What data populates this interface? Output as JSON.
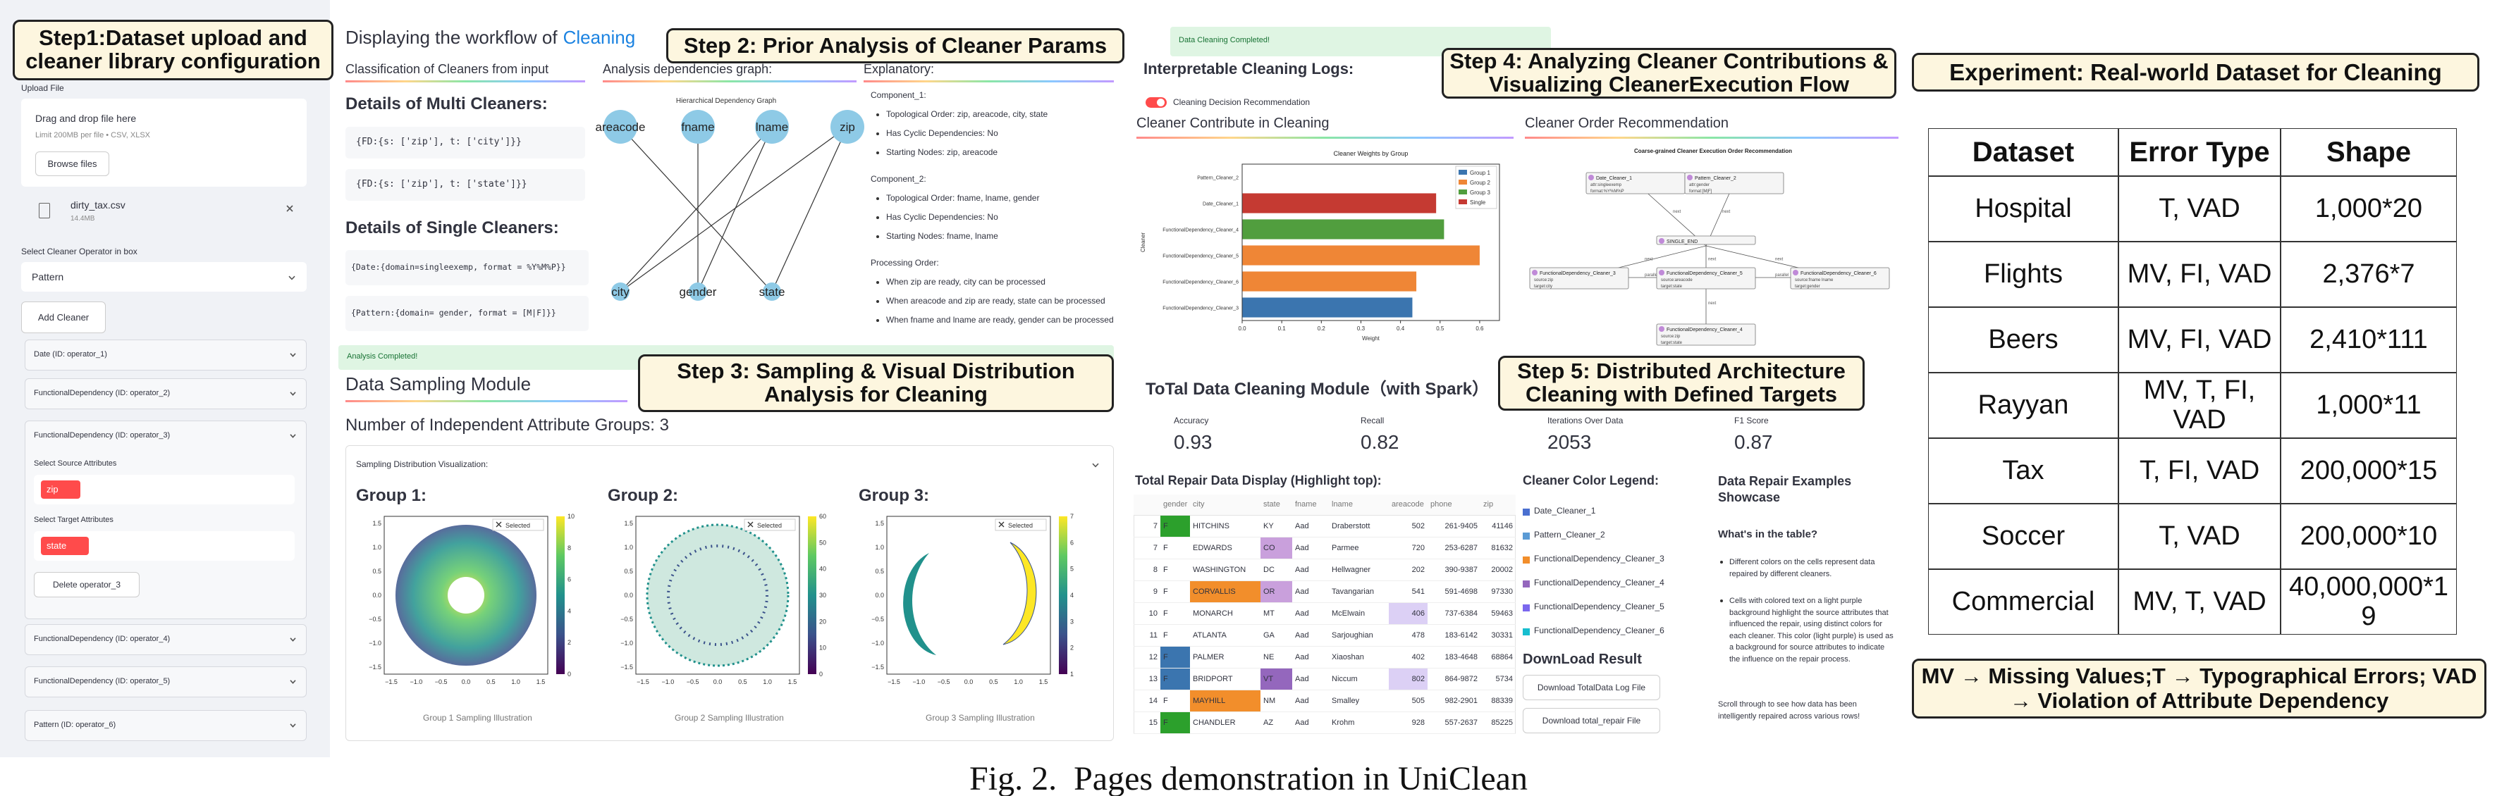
{
  "caption": "Fig. 2.  Pages demonstration in UniClean",
  "steps": [
    "Step1:Dataset upload and cleaner library configuration",
    "Step 2: Prior Analysis of Cleaner Params",
    "Step 3: Sampling & Visual Distribution Analysis for Cleaning",
    "Step 4: Analyzing Cleaner Contributions & Visualizing CleanerExecution Flow",
    "Step 5: Distributed Architecture Cleaning with Defined Targets"
  ],
  "sidebar": {
    "upload_label": "Upload File",
    "drop": "Drag and drop file here",
    "limit": "Limit 200MB per file • CSV, XLSX",
    "browse": "Browse files",
    "file_name": "dirty_tax.csv",
    "file_size": "14.4MB",
    "select_label": "Select Cleaner Operator in box",
    "select_value": "Pattern",
    "add": "Add Cleaner",
    "operators": [
      "Date (ID: operator_1)",
      "FunctionalDependency (ID: operator_2)",
      "FunctionalDependency (ID: operator_3)",
      "FunctionalDependency (ID: operator_4)",
      "FunctionalDependency (ID: operator_5)",
      "Pattern (ID: operator_6)"
    ],
    "source_label": "Select Source Attributes",
    "source_tag": "zip",
    "target_label": "Select Target Attributes",
    "target_tag": "state",
    "delete": "Delete operator_3"
  },
  "analysis": {
    "workflow_prefix": "Displaying the workflow of",
    "workflow_name": "Cleaning",
    "classification": "Classification of Cleaners from input",
    "dependency_graph": "Analysis dependencies graph:",
    "explanatory": "Explanatory:",
    "multi_title": "Details of Multi Cleaners:",
    "multi": [
      "{FD:{s: ['zip'], t: ['city']}}",
      "{FD:{s: ['zip'], t: ['state']}}"
    ],
    "single_title": "Details of Single Cleaners:",
    "single": [
      "{Date:{domain=singleexemp, format = %Y%M%P}}",
      "{Pattern:{domain= gender, format = [M|F]}}"
    ],
    "graph": {
      "title": "Hierarchical Dependency Graph",
      "nodes": [
        "areacode",
        "fname",
        "lname",
        "zip",
        "city",
        "gender",
        "state"
      ]
    },
    "explanations": [
      {
        "heading": "Component_1:",
        "items": [
          "Topological Order: zip, areacode, city, state",
          "Has Cyclic Dependencies: No",
          "Starting Nodes: zip, areacode"
        ]
      },
      {
        "heading": "Component_2:",
        "items": [
          "Topological Order: fname, lname, gender",
          "Has Cyclic Dependencies: No",
          "Starting Nodes: fname, lname"
        ]
      },
      {
        "heading": "Processing Order:",
        "items": [
          "When zip are ready, city can be processed",
          "When areacode and zip are ready, state can be processed",
          "When fname and lname are ready, gender can be processed"
        ]
      }
    ],
    "completed": "Analysis Completed!"
  },
  "sampling": {
    "title": "Data Sampling Module",
    "groups_count": "Number of Independent Attribute Groups: 3",
    "viz_title": "Sampling Distribution Visualization:",
    "selected": "Selected",
    "axis_tick_labels": [
      "−1.5",
      "−1.0",
      "−0.5",
      "0.0",
      "0.5",
      "1.0",
      "1.5"
    ],
    "groups": [
      {
        "title": "Group 1:",
        "caption": "Group 1 Sampling Illustration",
        "colorbar_labels": [
          "0",
          "2",
          "4",
          "6",
          "8",
          "10"
        ]
      },
      {
        "title": "Group 2:",
        "caption": "Group 2 Sampling Illustration",
        "colorbar_labels": [
          "0",
          "10",
          "20",
          "30",
          "40",
          "50",
          "60"
        ]
      },
      {
        "title": "Group 3:",
        "caption": "Group 3 Sampling Illustration",
        "colorbar_labels": [
          "1",
          "2",
          "3",
          "4",
          "5",
          "6",
          "7"
        ]
      }
    ]
  },
  "results": {
    "completed": "Data Cleaning Completed!",
    "logs_title": "Interpretable Cleaning Logs:",
    "toggle": "Cleaning Decision Recommendation",
    "contribute_title": "Cleaner Contribute in Cleaning",
    "order_title": "Cleaner Order Recommendation",
    "flow": {
      "title": "Coarse-grained Cleaner Execution Order Recommendation",
      "parallel": "parallel",
      "next": "next",
      "nodes": [
        {
          "name": "Date_Cleaner_1",
          "lines": [
            "attr:singleexemp",
            "format:%Y%M%P"
          ]
        },
        {
          "name": "Pattern_Cleaner_2",
          "lines": [
            "attr:gender",
            "format:[M|F]"
          ]
        },
        {
          "name": "SINGLE_END",
          "lines": []
        },
        {
          "name": "FunctionalDependency_Cleaner_3",
          "lines": [
            "source:zip",
            "target:city"
          ]
        },
        {
          "name": "FunctionalDependency_Cleaner_5",
          "lines": [
            "source:areacode",
            "target:state"
          ]
        },
        {
          "name": "FunctionalDependency_Cleaner_6",
          "lines": [
            "source:fname lname",
            "target:gender"
          ]
        },
        {
          "name": "FunctionalDependency_Cleaner_4",
          "lines": [
            "source:zip",
            "target:state"
          ]
        }
      ]
    },
    "spark_title": "ToTal Data Cleaning Module（with Spark）",
    "metrics": [
      {
        "label": "Accuracy",
        "value": 0.93
      },
      {
        "label": "Recall",
        "value": 0.82
      },
      {
        "label": "Iterations Over Data",
        "value": 2053
      },
      {
        "label": "F1 Score",
        "value": 0.87
      }
    ],
    "repair_title": "Total Repair Data Display (Highlight top):",
    "repair_table": {
      "header": [
        "",
        "gender",
        "city",
        "state",
        "fname",
        "lname",
        "areacode",
        "phone",
        "zip"
      ],
      "rows": [
        [
          "7",
          "F",
          "HITCHINS",
          "KY",
          "Aad",
          "Draberstott",
          "502",
          "261-9405",
          "41146"
        ],
        [
          "7",
          "F",
          "EDWARDS",
          "CO",
          "Aad",
          "Parmee",
          "720",
          "253-6287",
          "81632"
        ],
        [
          "8",
          "F",
          "WASHINGTON",
          "DC",
          "Aad",
          "Hellwagner",
          "202",
          "390-9387",
          "20002"
        ],
        [
          "9",
          "F",
          "CORVALLIS",
          "OR",
          "Aad",
          "Tavangarian",
          "541",
          "591-4698",
          "97330"
        ],
        [
          "10",
          "F",
          "MONARCH",
          "MT",
          "Aad",
          "McElwain",
          "406",
          "737-6384",
          "59463"
        ],
        [
          "11",
          "F",
          "ATLANTA",
          "GA",
          "Aad",
          "Sarjoughian",
          "478",
          "183-6142",
          "30331"
        ],
        [
          "12",
          "F",
          "PALMER",
          "NE",
          "Aad",
          "Xiaoshan",
          "402",
          "183-4648",
          "68864"
        ],
        [
          "13",
          "F",
          "BRIDPORT",
          "VT",
          "Aad",
          "Niccum",
          "802",
          "864-9872",
          "5734"
        ],
        [
          "14",
          "F",
          "MAYHILL",
          "NM",
          "Aad",
          "Smalley",
          "505",
          "982-2901",
          "88339"
        ],
        [
          "15",
          "F",
          "CHANDLER",
          "AZ",
          "Aad",
          "Krohm",
          "928",
          "557-2637",
          "85225"
        ]
      ],
      "highlights": [
        {
          "row": 0,
          "col": 1,
          "color": "#2ca02c"
        },
        {
          "row": 1,
          "col": 3,
          "color": "#c9a0dc"
        },
        {
          "row": 3,
          "col": 2,
          "color": "#f28e2b"
        },
        {
          "row": 3,
          "col": 3,
          "color": "#c9a0dc"
        },
        {
          "row": 4,
          "col": 6,
          "color": "#dcd0f5"
        },
        {
          "row": 6,
          "col": 1,
          "color": "#3b75af"
        },
        {
          "row": 7,
          "col": 1,
          "color": "#3b75af"
        },
        {
          "row": 7,
          "col": 3,
          "color": "#9467bd"
        },
        {
          "row": 7,
          "col": 6,
          "color": "#dcd0f5"
        },
        {
          "row": 8,
          "col": 2,
          "color": "#f28e2b"
        },
        {
          "row": 9,
          "col": 1,
          "color": "#2ca02c"
        }
      ]
    },
    "legend_title": "Cleaner Color Legend:",
    "legend": [
      {
        "name": "Date_Cleaner_1",
        "color": "#4a6fd0"
      },
      {
        "name": "Pattern_Cleaner_2",
        "color": "#5b9bd5"
      },
      {
        "name": "FunctionalDependency_Cleaner_3",
        "color": "#f28e2b"
      },
      {
        "name": "FunctionalDependency_Cleaner_4",
        "color": "#9467bd"
      },
      {
        "name": "FunctionalDependency_Cleaner_5",
        "color": "#7b68ee"
      },
      {
        "name": "FunctionalDependency_Cleaner_6",
        "color": "#17becf"
      }
    ],
    "download_title": "DownLoad Result",
    "downloads": [
      "Download TotalData Log File",
      "Download total_repair File"
    ],
    "examples_title": "Data Repair Examples Showcase",
    "examples_question": "What's in the table?",
    "examples_bullets": [
      "Different colors on the cells represent data repaired by different cleaners.",
      "Cells with colored text on a light purple background highlight the source attributes that influenced the repair, using distinct colors for each cleaner. This color (light purple) is used as a background for source attributes to indicate the influence on the repair process."
    ],
    "examples_footer": "Scroll through to see how data has been intelligently repaired across various rows!"
  },
  "chart_data": {
    "type": "bar",
    "orientation": "horizontal",
    "title": "Cleaner Weights by Group",
    "xlabel": "Weight",
    "ylabel": "Cleaner",
    "categories": [
      "Pattern_Cleaner_2",
      "Date_Cleaner_1",
      "FunctionalDependency_Cleaner_4",
      "FunctionalDependency_Cleaner_5",
      "FunctionalDependency_Cleaner_6",
      "FunctionalDependency_Cleaner_3"
    ],
    "series": [
      {
        "name": "Group 1",
        "color": "#3b75af",
        "values": [
          null,
          null,
          null,
          null,
          null,
          0.43
        ]
      },
      {
        "name": "Group 2",
        "color": "#ef8636",
        "values": [
          null,
          null,
          null,
          0.6,
          0.44,
          null
        ]
      },
      {
        "name": "Group 3",
        "color": "#519e3e",
        "values": [
          null,
          null,
          0.51,
          null,
          null,
          null
        ]
      },
      {
        "name": "Single",
        "color": "#c53a32",
        "values": [
          0,
          0.49,
          null,
          null,
          null,
          null
        ]
      }
    ],
    "xlim": [
      0,
      0.65
    ],
    "xticks": [
      {
        "value": 0,
        "label": "0.0"
      },
      0.1,
      0.2,
      0.3,
      0.4,
      0.5,
      0.6
    ],
    "legend": "upper right"
  },
  "experiment": {
    "title": "Experiment: Real-world Dataset for Cleaning",
    "header": [
      "Dataset",
      "Error Type",
      "Shape"
    ],
    "rows": [
      [
        "Hospital",
        "T, VAD",
        "1,000*20"
      ],
      [
        "Flights",
        "MV, FI, VAD",
        "2,376*7"
      ],
      [
        "Beers",
        "MV, FI, VAD",
        "2,410*111"
      ],
      [
        "Rayyan",
        "MV, T, FI, VAD",
        "1,000*11"
      ],
      [
        "Tax",
        "T, FI, VAD",
        "200,000*15"
      ],
      [
        "Soccer",
        "T, VAD",
        "200,000*10"
      ],
      [
        "Commercial",
        "MV, T, VAD",
        "40,000,000*19"
      ]
    ],
    "footnote": "MV → Missing Values;T → Typographical Errors; VAD → Violation of Attribute Dependency"
  }
}
